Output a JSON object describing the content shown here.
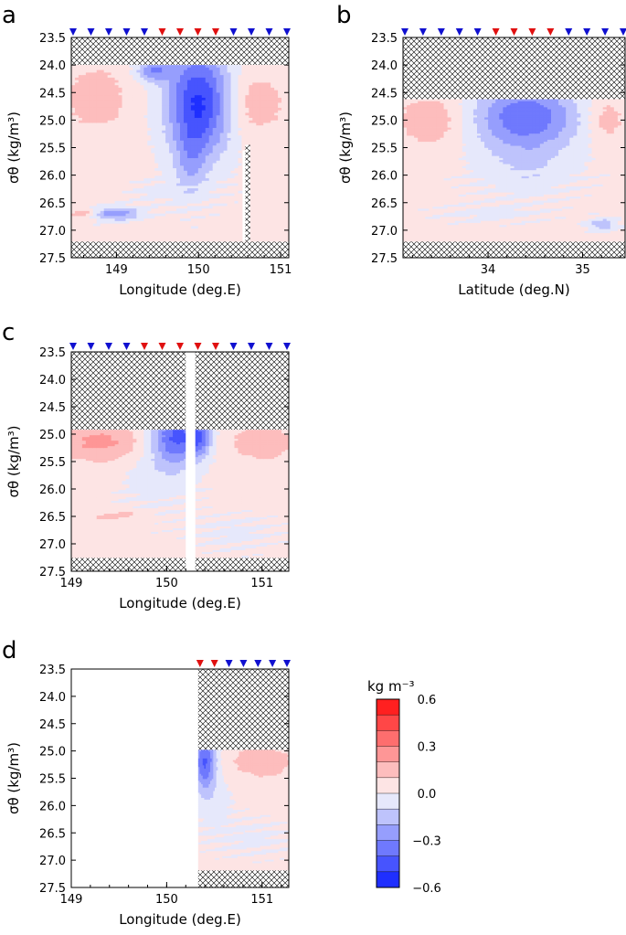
{
  "chart_data": [
    {
      "panel": "a",
      "type": "heatmap",
      "xlabel": "Longitude (deg.E)",
      "ylabel": "σθ (kg/m³)",
      "xlim": [
        148.45,
        151.1
      ],
      "ylim": [
        27.5,
        23.5
      ],
      "xticks": [
        {
          "v": 149,
          "label": "149"
        },
        {
          "v": 150,
          "label": "150"
        },
        {
          "v": 151,
          "label": "151"
        }
      ],
      "yticks": [
        "23.5",
        "24.0",
        "24.5",
        "25.0",
        "25.5",
        "26.0",
        "26.5",
        "27.0",
        "27.5"
      ],
      "station_markers": [
        "blue",
        "blue",
        "blue",
        "blue",
        "blue",
        "red",
        "red",
        "red",
        "red",
        "blue",
        "blue",
        "blue",
        "blue"
      ],
      "field": {
        "base": 0.03,
        "top_missing": 24.0,
        "bottom_missing": 27.2,
        "blobs": [
          {
            "x": 150.0,
            "y": 24.7,
            "rx": 0.38,
            "ry": 1.0,
            "a": -0.55
          },
          {
            "x": 149.45,
            "y": 24.1,
            "rx": 0.2,
            "ry": 0.2,
            "a": -0.3
          },
          {
            "x": 149.9,
            "y": 25.8,
            "rx": 0.18,
            "ry": 0.6,
            "a": -0.15
          },
          {
            "x": 148.75,
            "y": 24.6,
            "rx": 0.35,
            "ry": 0.55,
            "a": 0.16
          },
          {
            "x": 150.7,
            "y": 24.7,
            "rx": 0.35,
            "ry": 0.55,
            "a": 0.14
          },
          {
            "x": 149.0,
            "y": 26.7,
            "rx": 0.3,
            "ry": 0.12,
            "a": -0.3
          },
          {
            "x": 148.6,
            "y": 26.7,
            "rx": 0.15,
            "ry": 0.1,
            "a": 0.15
          },
          {
            "x": 149.5,
            "y": 26.3,
            "rx": 0.3,
            "ry": 0.2,
            "a": -0.06
          }
        ],
        "gaps": [
          {
            "x0": 150.57,
            "x1": 150.63,
            "y0": 25.45,
            "y1": 27.2
          }
        ]
      }
    },
    {
      "panel": "b",
      "type": "heatmap",
      "xlabel": "Latitude (deg.N)",
      "ylabel": "σθ (kg/m³)",
      "xlim": [
        33.1,
        35.45
      ],
      "ylim": [
        27.5,
        23.5
      ],
      "xticks": [
        {
          "v": 34,
          "label": "34"
        },
        {
          "v": 35,
          "label": "35"
        }
      ],
      "yticks": [
        "23.5",
        "24.0",
        "24.5",
        "25.0",
        "25.5",
        "26.0",
        "26.5",
        "27.0",
        "27.5"
      ],
      "station_markers": [
        "blue",
        "blue",
        "blue",
        "blue",
        "blue",
        "red",
        "red",
        "red",
        "red",
        "blue",
        "blue",
        "blue",
        "blue"
      ],
      "field": {
        "base": 0.03,
        "top_missing": 24.62,
        "bottom_missing": 27.2,
        "blobs": [
          {
            "x": 34.4,
            "y": 24.95,
            "rx": 0.55,
            "ry": 0.6,
            "a": -0.42
          },
          {
            "x": 34.4,
            "y": 25.9,
            "rx": 0.5,
            "ry": 0.5,
            "a": -0.1
          },
          {
            "x": 33.4,
            "y": 25.0,
            "rx": 0.35,
            "ry": 0.45,
            "a": 0.16
          },
          {
            "x": 35.25,
            "y": 25.0,
            "rx": 0.2,
            "ry": 0.4,
            "a": 0.14
          },
          {
            "x": 35.2,
            "y": 26.9,
            "rx": 0.15,
            "ry": 0.12,
            "a": -0.2
          },
          {
            "x": 34.0,
            "y": 26.7,
            "rx": 0.5,
            "ry": 0.15,
            "a": -0.06
          }
        ],
        "gaps": []
      }
    },
    {
      "panel": "c",
      "type": "heatmap",
      "xlabel": "Longitude (deg.E)",
      "ylabel": "σθ (kg/m³)",
      "xlim": [
        149.0,
        151.28
      ],
      "ylim": [
        27.5,
        23.5
      ],
      "xticks": [
        {
          "v": 149,
          "label": "149"
        },
        {
          "v": 150,
          "label": "150"
        },
        {
          "v": 151,
          "label": "151"
        }
      ],
      "yticks": [
        "23.5",
        "24.0",
        "24.5",
        "25.0",
        "25.5",
        "26.0",
        "26.5",
        "27.0",
        "27.5"
      ],
      "station_markers": [
        "blue",
        "blue",
        "blue",
        "blue",
        "red",
        "red",
        "red",
        "red",
        "red",
        "blue",
        "blue",
        "blue",
        "blue"
      ],
      "field": {
        "base": 0.03,
        "top_missing": 24.92,
        "bottom_missing": 27.25,
        "blobs": [
          {
            "x": 150.1,
            "y": 25.05,
            "rx": 0.25,
            "ry": 0.5,
            "a": -0.45
          },
          {
            "x": 150.35,
            "y": 25.05,
            "rx": 0.12,
            "ry": 0.35,
            "a": -0.3
          },
          {
            "x": 149.9,
            "y": 25.8,
            "rx": 0.35,
            "ry": 0.6,
            "a": -0.08
          },
          {
            "x": 149.3,
            "y": 25.15,
            "rx": 0.45,
            "ry": 0.35,
            "a": 0.2
          },
          {
            "x": 151.0,
            "y": 25.15,
            "rx": 0.35,
            "ry": 0.35,
            "a": 0.14
          },
          {
            "x": 149.5,
            "y": 26.5,
            "rx": 0.3,
            "ry": 0.12,
            "a": 0.1
          },
          {
            "x": 150.7,
            "y": 26.8,
            "rx": 0.4,
            "ry": 0.3,
            "a": -0.06
          }
        ],
        "gaps": [
          {
            "x0": 150.2,
            "x1": 150.3,
            "y0": 23.5,
            "y1": 27.5
          }
        ]
      }
    },
    {
      "panel": "d",
      "type": "heatmap",
      "xlabel": "Longitude (deg.E)",
      "ylabel": "σθ (kg/m³)",
      "xlim": [
        149.0,
        151.28
      ],
      "ylim": [
        27.5,
        23.5
      ],
      "xticks": [
        {
          "v": 149,
          "label": "149"
        },
        {
          "v": 150,
          "label": "150"
        },
        {
          "v": 151,
          "label": "151"
        }
      ],
      "yticks": [
        "23.5",
        "24.0",
        "24.5",
        "25.0",
        "25.5",
        "26.0",
        "26.5",
        "27.0",
        "27.5"
      ],
      "data_xrange": [
        150.33,
        151.28
      ],
      "station_markers": [
        "red",
        "red",
        "blue",
        "blue",
        "blue",
        "blue",
        "blue"
      ],
      "field": {
        "base": 0.03,
        "top_missing": 24.98,
        "bottom_missing": 27.18,
        "blobs": [
          {
            "x": 150.4,
            "y": 25.2,
            "rx": 0.12,
            "ry": 0.5,
            "a": -0.45
          },
          {
            "x": 150.5,
            "y": 26.0,
            "rx": 0.2,
            "ry": 0.5,
            "a": -0.08
          },
          {
            "x": 151.0,
            "y": 25.2,
            "rx": 0.35,
            "ry": 0.3,
            "a": 0.14
          },
          {
            "x": 150.9,
            "y": 26.6,
            "rx": 0.35,
            "ry": 0.3,
            "a": -0.06
          }
        ],
        "gaps": []
      }
    }
  ],
  "panel_labels": [
    "a",
    "b",
    "c",
    "d"
  ],
  "colorbar": {
    "title": "kg m⁻³",
    "range": [
      -0.6,
      0.6
    ],
    "ticks": [
      "0.6",
      "0.3",
      "0.0",
      "−0.3",
      "−0.6"
    ],
    "levels": 12
  },
  "colors": {
    "red_max": "#ff2020",
    "blue_max": "#1f2fff",
    "neutral_pos": "#fde4e4",
    "neutral_neg": "#e6e8fb",
    "marker_red": "#e01010",
    "marker_blue": "#1010d0"
  }
}
